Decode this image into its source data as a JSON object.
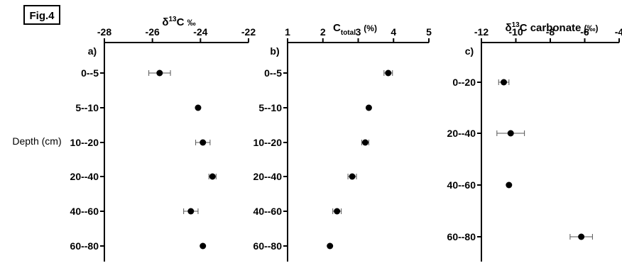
{
  "figure_label": "Fig.4",
  "y_axis_label": "Depth (cm)",
  "chart_data": [
    {
      "type": "scatter",
      "panel_label": "a)",
      "title": "δ13C ‰",
      "title_parts": {
        "main": "δ",
        "sup": "13",
        "rest": "C ",
        "unit": "‰"
      },
      "xlim": [
        -28,
        -22
      ],
      "xticks": [
        -28,
        -26,
        -24,
        -22
      ],
      "categories": [
        "0--5",
        "5--10",
        "10--20",
        "20--40",
        "40--60",
        "60--80"
      ],
      "values": [
        -25.7,
        -24.1,
        -23.9,
        -23.5,
        -24.4,
        -23.9
      ],
      "errors": [
        0.45,
        0.0,
        0.3,
        0.15,
        0.3,
        0.0
      ],
      "grid": false,
      "marker_color": "#000000"
    },
    {
      "type": "scatter",
      "panel_label": "b)",
      "title": "Ctotal (%)",
      "title_parts": {
        "main": "C",
        "sub": "total",
        "unit": "(%)"
      },
      "xlim": [
        1,
        5
      ],
      "xticks": [
        1,
        2,
        3,
        4,
        5
      ],
      "categories": [
        "0--5",
        "5--10",
        "10--20",
        "20--40",
        "40--60",
        "60--80"
      ],
      "values": [
        3.85,
        3.3,
        3.2,
        2.83,
        2.4,
        2.2
      ],
      "errors": [
        0.12,
        0.0,
        0.1,
        0.12,
        0.12,
        0.0
      ],
      "grid": false,
      "marker_color": "#000000"
    },
    {
      "type": "scatter",
      "panel_label": "c)",
      "title": "δ13C carbonate (‰)",
      "title_parts": {
        "main": "δ",
        "sup": "13",
        "rest": "C carbonate ",
        "unit": "(‰)"
      },
      "xlim": [
        -12,
        -4
      ],
      "xticks": [
        -12,
        -10,
        -8,
        -6,
        -4
      ],
      "categories": [
        "0--20",
        "20--40",
        "40--60",
        "60--80"
      ],
      "values": [
        -10.7,
        -10.3,
        -10.4,
        -6.2
      ],
      "errors": [
        0.3,
        0.8,
        0.0,
        0.65
      ],
      "grid": false,
      "marker_color": "#000000"
    }
  ]
}
